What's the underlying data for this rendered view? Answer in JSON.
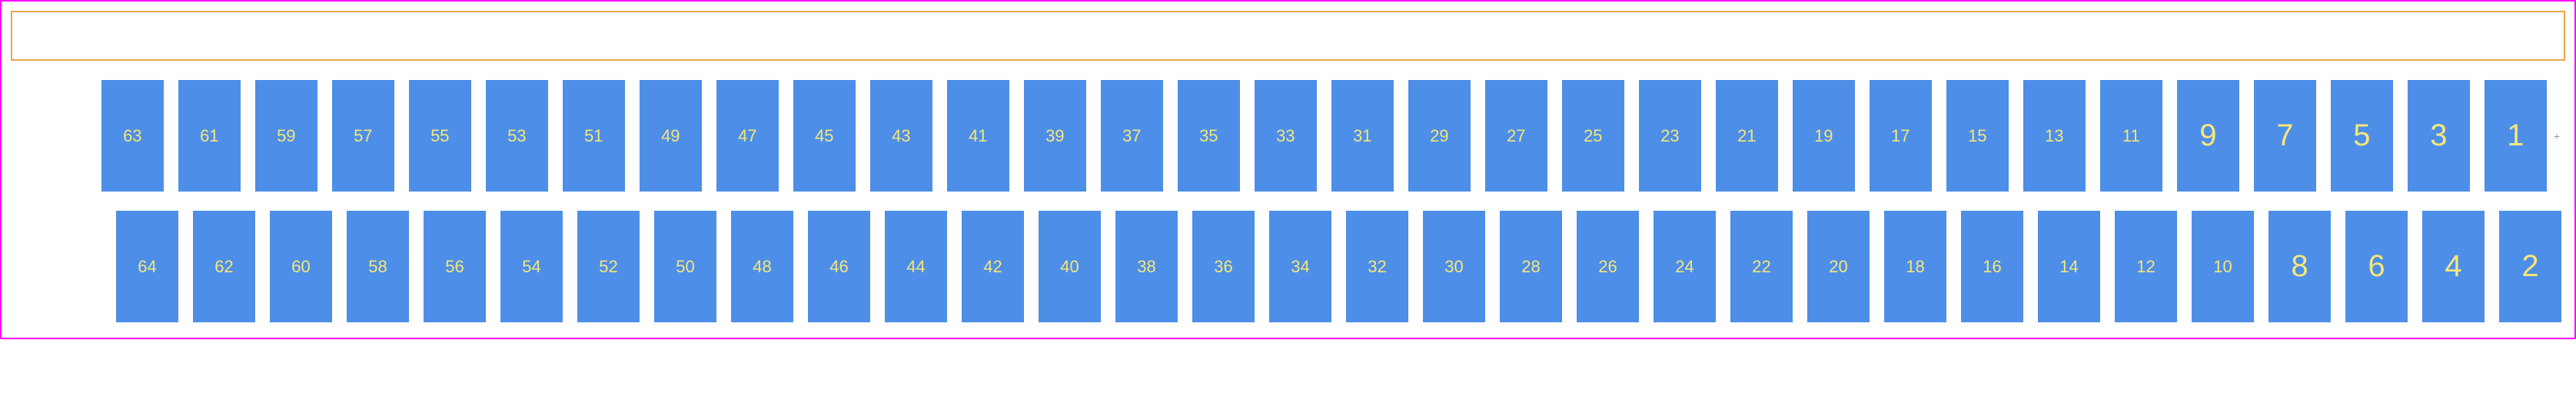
{
  "diagram": {
    "type": "connector-footprint",
    "frame_border_color": "#ff00ff",
    "top_bar_border_color": "#e6a94d",
    "background_color": "#ffffff",
    "pin_color": "#4d8ee8",
    "label_color": "#f5e67a",
    "pin_width": 81,
    "pin_height": 145,
    "pin_gap": 19,
    "row_gap": 25,
    "small_fontsize": 22,
    "large_fontsize": 40,
    "large_label_threshold": 9,
    "rows": [
      {
        "name": "top",
        "pins": [
          63,
          61,
          59,
          57,
          55,
          53,
          51,
          49,
          47,
          45,
          43,
          41,
          39,
          37,
          35,
          33,
          31,
          29,
          27,
          25,
          23,
          21,
          19,
          17,
          15,
          13,
          11,
          9,
          7,
          5,
          3,
          1
        ],
        "has_origin_marker": true
      },
      {
        "name": "bottom",
        "pins": [
          64,
          62,
          60,
          58,
          56,
          54,
          52,
          50,
          48,
          46,
          44,
          42,
          40,
          38,
          36,
          34,
          32,
          30,
          28,
          26,
          24,
          22,
          20,
          18,
          16,
          14,
          12,
          10,
          8,
          6,
          4,
          2
        ],
        "has_origin_marker": false
      }
    ],
    "origin_marker_symbol": "+"
  }
}
